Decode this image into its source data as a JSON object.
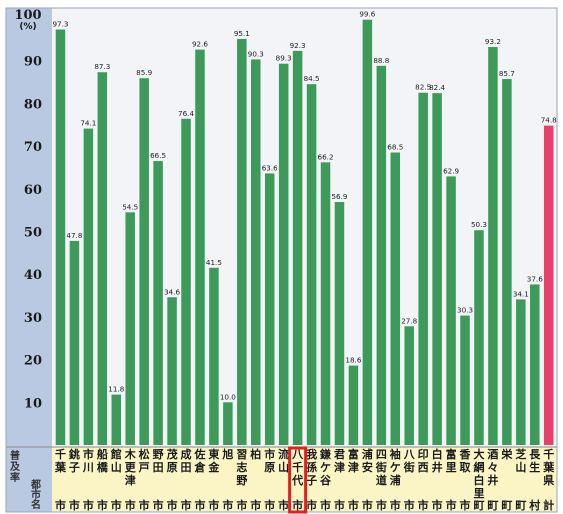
{
  "chart_data": {
    "type": "bar",
    "y_unit_label": "(%)",
    "ylim": [
      0,
      100
    ],
    "yticks": [
      10,
      20,
      30,
      40,
      50,
      60,
      70,
      80,
      90,
      100
    ],
    "grid": false,
    "legend": "none",
    "row_label_top": [
      "普",
      "及",
      "率"
    ],
    "row_label_bottom": [
      "都",
      "市",
      "名"
    ],
    "highlight_index": 17,
    "colors": {
      "bar": "#3d9a5a",
      "bar_total": "#e8406a",
      "plot_bg": "#f2f4f8",
      "axis_band": "#b9c9e2",
      "name_band": "#fbf4c4",
      "highlight_box": "#e02020"
    },
    "categories": [
      {
        "name": [
          "千",
          "葉",
          "市"
        ],
        "value": 97.3
      },
      {
        "name": [
          "銚",
          "子",
          "市"
        ],
        "value": 47.8
      },
      {
        "name": [
          "市",
          "川",
          "市"
        ],
        "value": 74.1
      },
      {
        "name": [
          "船",
          "橋",
          "市"
        ],
        "value": 87.3
      },
      {
        "name": [
          "館",
          "山",
          "市"
        ],
        "value": 11.8
      },
      {
        "name": [
          "木",
          "更",
          "津",
          "市"
        ],
        "value": 54.5
      },
      {
        "name": [
          "松",
          "戸",
          "市"
        ],
        "value": 85.9
      },
      {
        "name": [
          "野",
          "田",
          "市"
        ],
        "value": 66.5
      },
      {
        "name": [
          "茂",
          "原",
          "市"
        ],
        "value": 34.6
      },
      {
        "name": [
          "成",
          "田",
          "市"
        ],
        "value": 76.4
      },
      {
        "name": [
          "佐",
          "倉",
          "市"
        ],
        "value": 92.6
      },
      {
        "name": [
          "東",
          "金",
          "市"
        ],
        "value": 41.5
      },
      {
        "name": [
          "旭",
          "市"
        ],
        "value": 10.0
      },
      {
        "name": [
          "習",
          "志",
          "野",
          "市"
        ],
        "value": 95.1
      },
      {
        "name": [
          "柏",
          "市"
        ],
        "value": 90.3
      },
      {
        "name": [
          "市",
          "原",
          "市"
        ],
        "value": 63.6
      },
      {
        "name": [
          "流",
          "山",
          "市"
        ],
        "value": 89.3
      },
      {
        "name": [
          "八",
          "千",
          "代",
          "市"
        ],
        "value": 92.3
      },
      {
        "name": [
          "我",
          "孫",
          "子",
          "市"
        ],
        "value": 84.5
      },
      {
        "name": [
          "鎌",
          "ケ",
          "谷",
          "市"
        ],
        "value": 66.2
      },
      {
        "name": [
          "君",
          "津",
          "市"
        ],
        "value": 56.9
      },
      {
        "name": [
          "富",
          "津",
          "市"
        ],
        "value": 18.6
      },
      {
        "name": [
          "浦",
          "安",
          "市"
        ],
        "value": 99.6
      },
      {
        "name": [
          "四",
          "街",
          "道",
          "市"
        ],
        "value": 88.8
      },
      {
        "name": [
          "袖",
          "ケ",
          "浦",
          "市"
        ],
        "value": 68.5
      },
      {
        "name": [
          "八",
          "街",
          "市"
        ],
        "value": 27.8
      },
      {
        "name": [
          "印",
          "西",
          "市"
        ],
        "value": 82.5
      },
      {
        "name": [
          "白",
          "井",
          "市"
        ],
        "value": 82.4
      },
      {
        "name": [
          "富",
          "里",
          "市"
        ],
        "value": 62.9
      },
      {
        "name": [
          "香",
          "取",
          "市"
        ],
        "value": 30.3
      },
      {
        "name": [
          "大",
          "網",
          "白",
          "里",
          "町"
        ],
        "value": 50.3
      },
      {
        "name": [
          "酒",
          "々",
          "井",
          "町"
        ],
        "value": 93.2
      },
      {
        "name": [
          "栄",
          "町"
        ],
        "value": 85.7
      },
      {
        "name": [
          "芝",
          "山",
          "町"
        ],
        "value": 34.1
      },
      {
        "name": [
          "長",
          "生",
          "村"
        ],
        "value": 37.6
      },
      {
        "name": [
          "千",
          "葉",
          "県",
          "計"
        ],
        "value": 74.8,
        "total": true
      }
    ]
  }
}
